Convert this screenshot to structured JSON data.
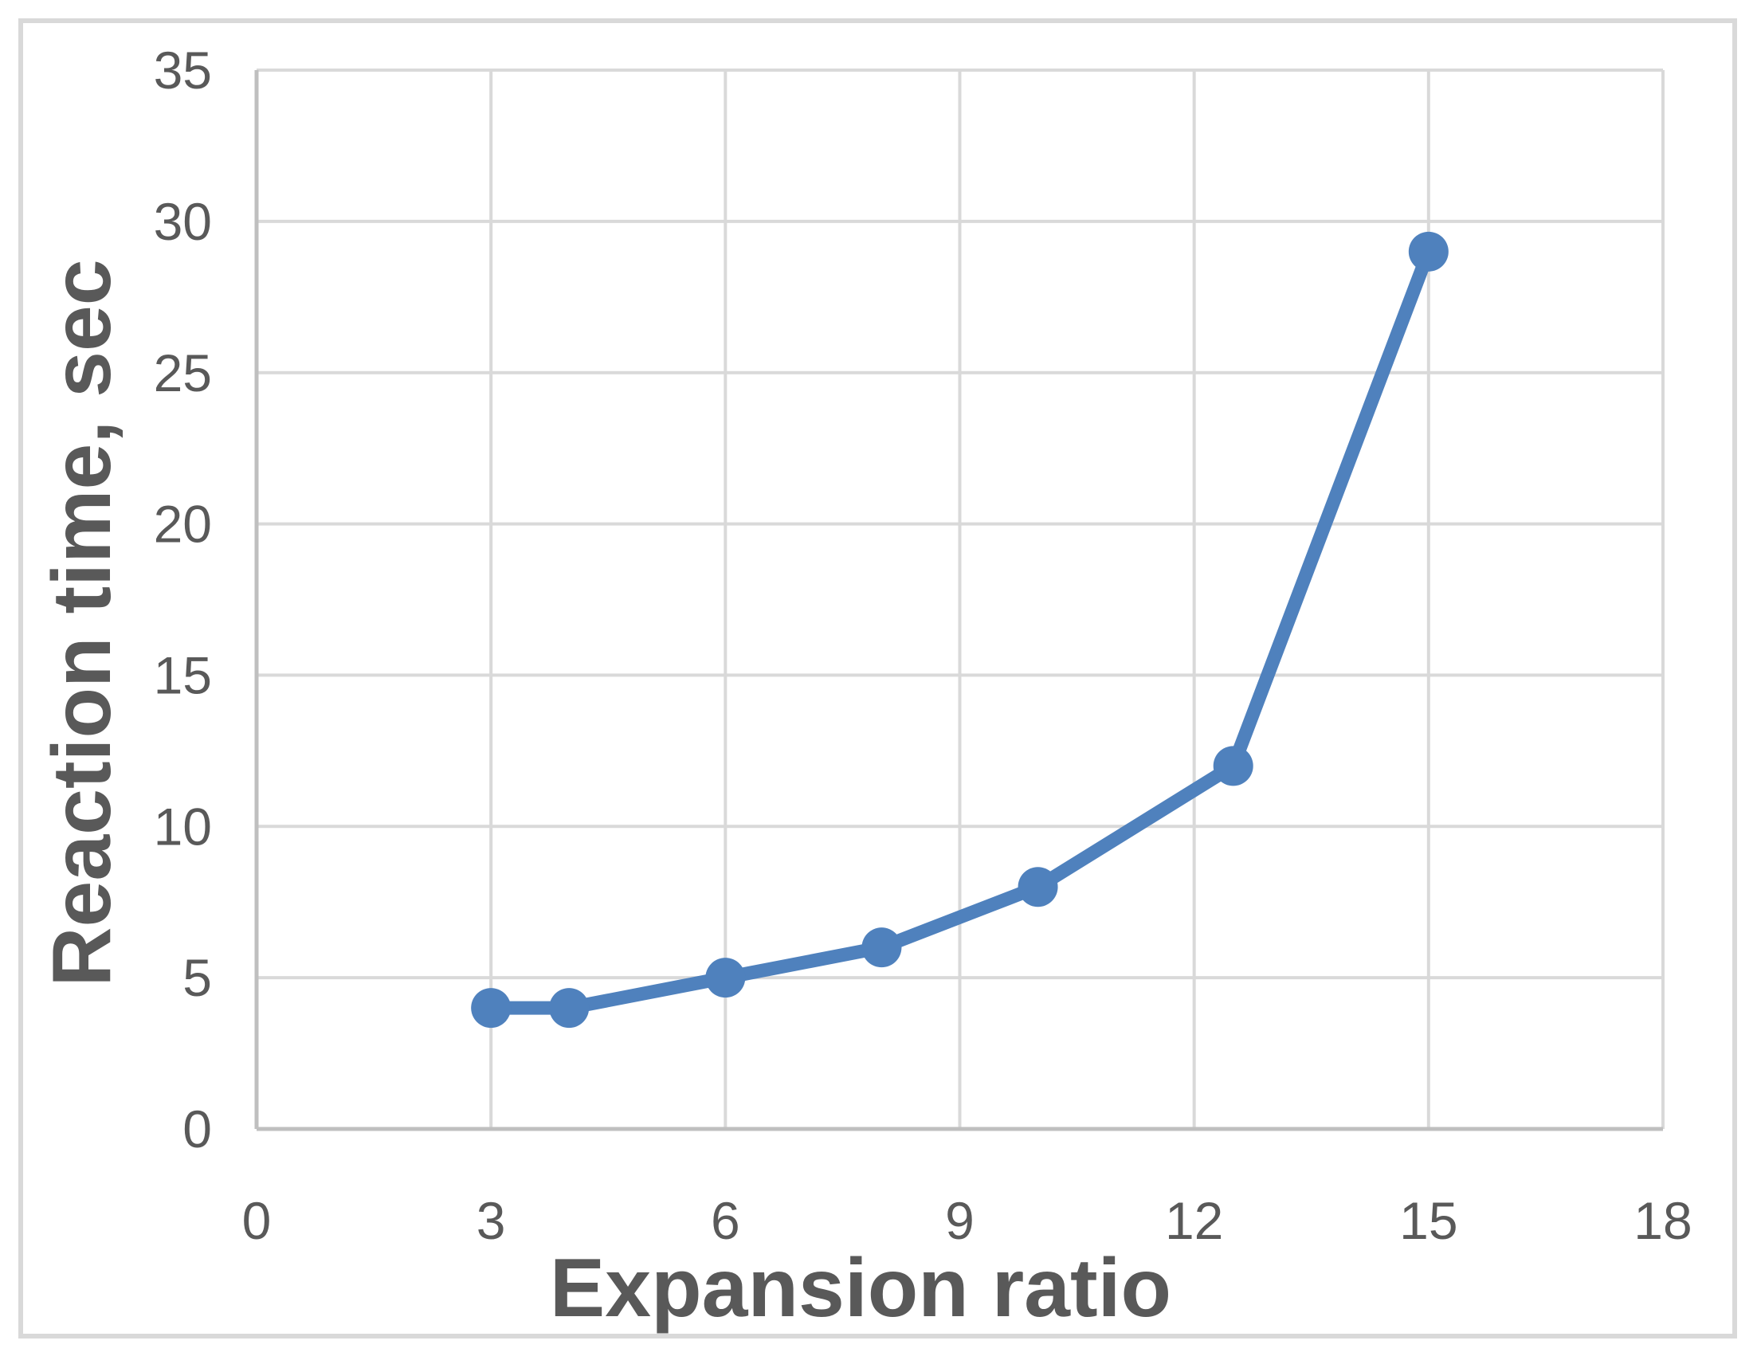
{
  "chart_data": {
    "type": "line",
    "title": "",
    "xlabel": "Expansion ratio",
    "ylabel": "Reaction time, sec",
    "series": [
      {
        "x": [
          3,
          4,
          6,
          8,
          10,
          12.5,
          15
        ],
        "y": [
          4,
          4,
          5,
          6,
          8,
          12,
          29
        ]
      }
    ],
    "xlim": [
      0,
      18
    ],
    "ylim": [
      0,
      35
    ],
    "xticks": [
      0,
      3,
      6,
      9,
      12,
      15,
      18
    ],
    "yticks": [
      0,
      5,
      10,
      15,
      20,
      25,
      30,
      35
    ],
    "grid": true,
    "legend": "none",
    "marker": "circle",
    "colors": {
      "line": "#4F81BD",
      "marker": "#4F81BD",
      "gridline": "#D9D9D9",
      "axis_line": "#BFBFBF",
      "text": "#595959",
      "frame": "#D9D9D9",
      "background": "#FFFFFF"
    }
  }
}
